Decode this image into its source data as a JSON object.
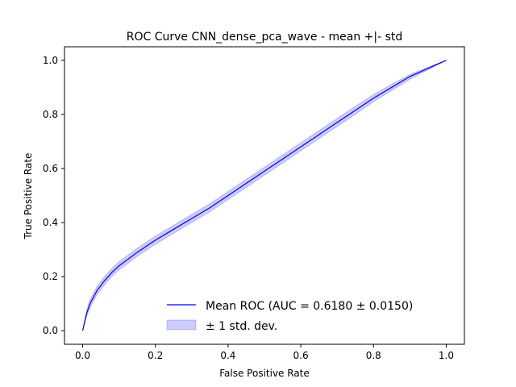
{
  "chart_data": {
    "type": "line",
    "title": "ROC Curve CNN_dense_pca_wave - mean +|- std",
    "xlabel": "False Positive Rate",
    "ylabel": "True Positive Rate",
    "xlim": [
      -0.05,
      1.05
    ],
    "ylim": [
      -0.05,
      1.05
    ],
    "xticks": [
      0.0,
      0.2,
      0.4,
      0.6,
      0.8,
      1.0
    ],
    "yticks": [
      0.0,
      0.2,
      0.4,
      0.6,
      0.8,
      1.0
    ],
    "xtick_labels": [
      "0.0",
      "0.2",
      "0.4",
      "0.6",
      "0.8",
      "1.0"
    ],
    "ytick_labels": [
      "0.0",
      "0.2",
      "0.4",
      "0.6",
      "0.8",
      "1.0"
    ],
    "grid": false,
    "legend_position": "lower-right",
    "series": [
      {
        "name": "Mean ROC (AUC = 0.6180 ± 0.0150)",
        "kind": "line",
        "color": "#0000ff",
        "x": [
          0.0,
          0.01,
          0.02,
          0.04,
          0.06,
          0.08,
          0.1,
          0.15,
          0.2,
          0.25,
          0.3,
          0.35,
          0.4,
          0.45,
          0.5,
          0.55,
          0.6,
          0.65,
          0.7,
          0.75,
          0.8,
          0.85,
          0.9,
          0.95,
          1.0
        ],
        "y": [
          0.0,
          0.06,
          0.1,
          0.15,
          0.185,
          0.215,
          0.24,
          0.29,
          0.335,
          0.375,
          0.415,
          0.455,
          0.5,
          0.545,
          0.59,
          0.635,
          0.68,
          0.725,
          0.77,
          0.815,
          0.86,
          0.9,
          0.94,
          0.97,
          1.0
        ]
      },
      {
        "name": "± 1 std. dev.",
        "kind": "band",
        "color": "#0000ff",
        "opacity": 0.2,
        "x": [
          0.0,
          0.01,
          0.02,
          0.04,
          0.06,
          0.08,
          0.1,
          0.15,
          0.2,
          0.25,
          0.3,
          0.35,
          0.4,
          0.45,
          0.5,
          0.55,
          0.6,
          0.65,
          0.7,
          0.75,
          0.8,
          0.85,
          0.9,
          0.95,
          1.0
        ],
        "upper": [
          0.0,
          0.07,
          0.115,
          0.165,
          0.2,
          0.23,
          0.255,
          0.305,
          0.35,
          0.39,
          0.43,
          0.47,
          0.515,
          0.56,
          0.605,
          0.65,
          0.695,
          0.74,
          0.785,
          0.83,
          0.873,
          0.912,
          0.947,
          0.975,
          1.0
        ],
        "lower": [
          0.0,
          0.05,
          0.085,
          0.135,
          0.17,
          0.2,
          0.225,
          0.275,
          0.32,
          0.36,
          0.4,
          0.44,
          0.485,
          0.53,
          0.575,
          0.62,
          0.665,
          0.71,
          0.755,
          0.8,
          0.847,
          0.888,
          0.93,
          0.965,
          1.0
        ]
      }
    ]
  }
}
